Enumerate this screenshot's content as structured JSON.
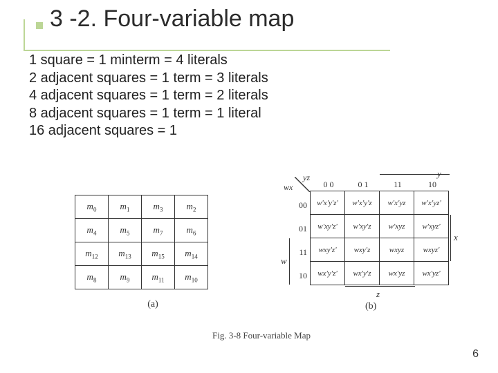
{
  "title": "3 -2. Four-variable map",
  "body": {
    "line1": "1 square = 1 minterm = 4 literals",
    "line2": "2 adjacent squares = 1 term = 3 literals",
    "line3": "4 adjacent squares = 1 term = 2 literals",
    "line4": "8 adjacent squares = 1 term = 1 literal",
    "line5": "16 adjacent squares = 1"
  },
  "fig_a": {
    "cells": [
      [
        "m0",
        "m1",
        "m3",
        "m2"
      ],
      [
        "m4",
        "m5",
        "m7",
        "m6"
      ],
      [
        "m12",
        "m13",
        "m15",
        "m14"
      ],
      [
        "m8",
        "m9",
        "m11",
        "m10"
      ]
    ],
    "label": "(a)"
  },
  "fig_b": {
    "col_vars": "yz",
    "row_vars": "wx",
    "top_var": "y",
    "right_var": "x",
    "left_var": "w",
    "bottom_var": "z",
    "col_headers": [
      "0 0",
      "0 1",
      "11",
      "10"
    ],
    "row_headers": [
      "00",
      "01",
      "11",
      "10"
    ],
    "cells": [
      [
        "w'x'y'z'",
        "w'x'y'z",
        "w'x'yz",
        "w'x'yz'"
      ],
      [
        "w'xy'z'",
        "w'xy'z",
        "w'xyz",
        "w'xyz'"
      ],
      [
        "wxy'z'",
        "wxy'z",
        "wxyz",
        "wxyz'"
      ],
      [
        "wx'y'z'",
        "wx'y'z",
        "wx'yz",
        "wx'yz'"
      ]
    ],
    "label": "(b)"
  },
  "caption": "Fig. 3-8  Four-variable Map",
  "page_number": "6",
  "colors": {
    "accent": "#bcd696",
    "text": "#222222",
    "border": "#333333",
    "bg": "#ffffff"
  }
}
